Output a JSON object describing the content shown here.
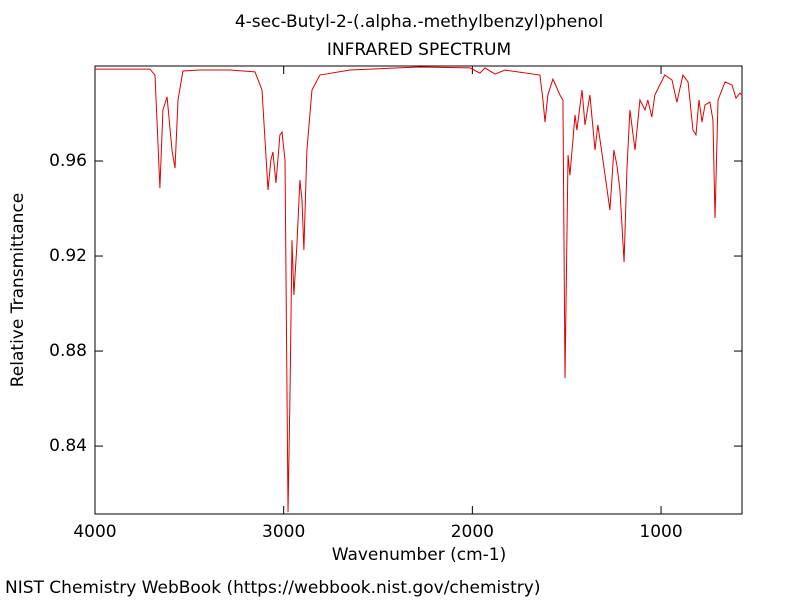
{
  "chart_data": {
    "type": "line",
    "title": "4-sec-Butyl-2-(.alpha.-methylbenzyl)phenol",
    "subtitle": "INFRARED SPECTRUM",
    "x_label": "Wavenumber (cm-1)",
    "y_label": "Relative Transmittance",
    "source": "NIST Chemistry WebBook (https://webbook.nist.gov/chemistry)",
    "xlim": [
      4000,
      571
    ],
    "ylim": [
      0.8114,
      1.0
    ],
    "xticks": [
      4000,
      3000,
      2000,
      1000
    ],
    "yticks": [
      0.84,
      0.88,
      0.92,
      0.96
    ],
    "series": [
      {
        "color": "#e00000",
        "x": [
          4000,
          3709,
          3682,
          3656,
          3640,
          3618,
          3592,
          3576,
          3560,
          3534,
          3444,
          3285,
          3152,
          3115,
          3083,
          3068,
          3057,
          3041,
          3020,
          3009,
          2993,
          2977,
          2967,
          2956,
          2946,
          2930,
          2914,
          2903,
          2893,
          2877,
          2850,
          2808,
          2649,
          2278,
          2013,
          1960,
          1933,
          1880,
          1827,
          1642,
          1626,
          1615,
          1600,
          1573,
          1536,
          1520,
          1509,
          1493,
          1483,
          1467,
          1456,
          1446,
          1419,
          1403,
          1377,
          1350,
          1335,
          1308,
          1271,
          1250,
          1234,
          1218,
          1196,
          1181,
          1165,
          1138,
          1112,
          1085,
          1070,
          1049,
          1033,
          980,
          942,
          916,
          884,
          857,
          847,
          831,
          815,
          799,
          783,
          767,
          741,
          725,
          714,
          698,
          661,
          624,
          603,
          582,
          571
        ],
        "values": [
          0.9987,
          0.9987,
          0.9962,
          0.9486,
          0.9815,
          0.987,
          0.9646,
          0.957,
          0.9857,
          0.9979,
          0.9983,
          0.9983,
          0.9975,
          0.9899,
          0.9478,
          0.9604,
          0.9638,
          0.9507,
          0.971,
          0.9722,
          0.9604,
          0.8122,
          0.8594,
          0.9267,
          0.9036,
          0.9246,
          0.952,
          0.9436,
          0.9225,
          0.9646,
          0.9899,
          0.9962,
          0.9983,
          0.9996,
          0.9992,
          0.997,
          0.9992,
          0.9966,
          0.9983,
          0.9962,
          0.9857,
          0.9764,
          0.9878,
          0.9945,
          0.9878,
          0.9857,
          0.8686,
          0.9625,
          0.954,
          0.9688,
          0.9794,
          0.973,
          0.9899,
          0.9752,
          0.9878,
          0.9646,
          0.9752,
          0.9604,
          0.9394,
          0.9646,
          0.9583,
          0.9478,
          0.9175,
          0.9562,
          0.9815,
          0.9646,
          0.9857,
          0.9815,
          0.9857,
          0.9785,
          0.9878,
          0.9962,
          0.9941,
          0.9848,
          0.9962,
          0.9933,
          0.9857,
          0.973,
          0.971,
          0.9857,
          0.9764,
          0.9836,
          0.9848,
          0.9773,
          0.936,
          0.9857,
          0.9933,
          0.992,
          0.9865,
          0.9886,
          0.9878
        ]
      }
    ]
  }
}
